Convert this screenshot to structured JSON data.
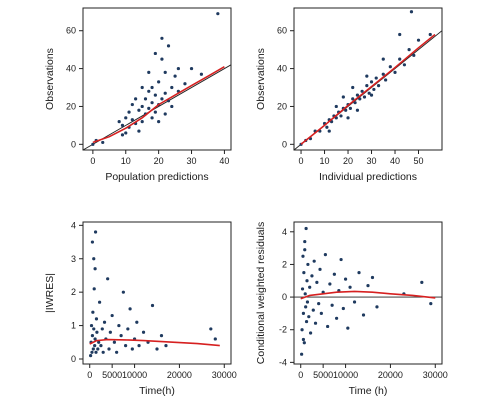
{
  "colors": {
    "points": "#1f3a5f",
    "smooth": "#d62020",
    "reference": "#222222",
    "frame": "#222222"
  },
  "chart_data": [
    {
      "id": "p1",
      "type": "scatter",
      "xlabel": "Population predictions",
      "ylabel": "Observations",
      "xlim": [
        -3,
        42
      ],
      "ylim": [
        -3,
        72
      ],
      "xticks": [
        0,
        10,
        20,
        30,
        40
      ],
      "yticks": [
        0,
        20,
        40,
        60
      ],
      "reference_line": {
        "kind": "identity"
      },
      "smooth": [
        [
          0,
          1
        ],
        [
          5,
          4
        ],
        [
          10,
          8.5
        ],
        [
          15,
          14
        ],
        [
          20,
          21
        ],
        [
          25,
          26
        ],
        [
          30,
          31
        ],
        [
          35,
          36
        ],
        [
          40,
          41
        ]
      ],
      "points": [
        [
          0,
          0
        ],
        [
          1,
          2
        ],
        [
          3,
          1
        ],
        [
          8,
          12
        ],
        [
          9,
          10
        ],
        [
          10,
          14
        ],
        [
          11,
          9
        ],
        [
          12,
          13
        ],
        [
          13,
          11
        ],
        [
          14,
          18
        ],
        [
          15,
          12
        ],
        [
          15,
          20
        ],
        [
          16,
          16
        ],
        [
          16,
          24
        ],
        [
          17,
          19
        ],
        [
          17,
          28
        ],
        [
          18,
          22
        ],
        [
          18,
          30
        ],
        [
          19,
          17
        ],
        [
          19,
          26
        ],
        [
          20,
          21
        ],
        [
          20,
          33
        ],
        [
          21,
          24
        ],
        [
          21,
          45
        ],
        [
          22,
          27
        ],
        [
          22,
          38
        ],
        [
          23,
          23
        ],
        [
          24,
          30
        ],
        [
          25,
          36
        ],
        [
          26,
          28
        ],
        [
          28,
          32
        ],
        [
          30,
          40
        ],
        [
          33,
          37
        ],
        [
          38,
          69
        ],
        [
          12,
          21
        ],
        [
          14,
          7
        ],
        [
          18,
          14
        ],
        [
          20,
          12
        ],
        [
          22,
          16
        ],
        [
          24,
          20
        ],
        [
          26,
          40
        ],
        [
          19,
          48
        ],
        [
          17,
          38
        ],
        [
          13,
          24
        ],
        [
          11,
          17
        ],
        [
          10,
          6
        ],
        [
          9,
          5
        ],
        [
          23,
          52
        ],
        [
          21,
          56
        ],
        [
          15,
          30
        ]
      ]
    },
    {
      "id": "p2",
      "type": "scatter",
      "xlabel": "Individual predictions",
      "ylabel": "Observations",
      "xlim": [
        -3,
        60
      ],
      "ylim": [
        -3,
        72
      ],
      "xticks": [
        0,
        10,
        20,
        30,
        40,
        50
      ],
      "yticks": [
        0,
        20,
        40,
        60
      ],
      "reference_line": {
        "kind": "identity"
      },
      "smooth": [
        [
          0,
          0
        ],
        [
          10,
          10
        ],
        [
          20,
          20.5
        ],
        [
          30,
          30.5
        ],
        [
          40,
          40.5
        ],
        [
          50,
          51
        ],
        [
          57,
          58
        ]
      ],
      "points": [
        [
          0,
          0
        ],
        [
          2,
          2
        ],
        [
          4,
          3
        ],
        [
          6,
          7
        ],
        [
          8,
          7
        ],
        [
          10,
          11
        ],
        [
          11,
          9
        ],
        [
          12,
          13
        ],
        [
          13,
          12
        ],
        [
          14,
          15
        ],
        [
          15,
          14
        ],
        [
          16,
          17
        ],
        [
          17,
          15
        ],
        [
          18,
          19
        ],
        [
          19,
          18
        ],
        [
          20,
          21
        ],
        [
          21,
          19
        ],
        [
          22,
          24
        ],
        [
          23,
          22
        ],
        [
          24,
          26
        ],
        [
          25,
          24
        ],
        [
          26,
          28
        ],
        [
          27,
          25
        ],
        [
          28,
          31
        ],
        [
          29,
          27
        ],
        [
          30,
          33
        ],
        [
          31,
          29
        ],
        [
          32,
          35
        ],
        [
          33,
          31
        ],
        [
          35,
          37
        ],
        [
          36,
          34
        ],
        [
          38,
          41
        ],
        [
          40,
          38
        ],
        [
          42,
          45
        ],
        [
          44,
          42
        ],
        [
          46,
          50
        ],
        [
          48,
          47
        ],
        [
          50,
          55
        ],
        [
          55,
          58
        ],
        [
          47,
          70
        ],
        [
          42,
          58
        ],
        [
          35,
          45
        ],
        [
          28,
          36
        ],
        [
          22,
          30
        ],
        [
          18,
          25
        ],
        [
          15,
          20
        ],
        [
          24,
          18
        ],
        [
          30,
          26
        ],
        [
          20,
          14
        ],
        [
          12,
          7
        ]
      ]
    },
    {
      "id": "p3",
      "type": "scatter",
      "xlabel": "Time(h)",
      "ylabel": "|IWRES|",
      "xlim": [
        -1500,
        31500
      ],
      "ylim": [
        -0.15,
        4.1
      ],
      "xticks": [
        0,
        5000,
        10000,
        20000,
        30000
      ],
      "yticks": [
        0,
        1,
        2,
        3,
        4
      ],
      "xtick_labels": [
        "0",
        "5000",
        "10000",
        "20000",
        "30000"
      ],
      "smooth": [
        [
          0,
          0.45
        ],
        [
          1500,
          0.55
        ],
        [
          4000,
          0.58
        ],
        [
          8000,
          0.57
        ],
        [
          12000,
          0.55
        ],
        [
          16000,
          0.52
        ],
        [
          20000,
          0.49
        ],
        [
          24000,
          0.46
        ],
        [
          29000,
          0.4
        ]
      ],
      "points": [
        [
          200,
          0.1
        ],
        [
          300,
          0.5
        ],
        [
          400,
          1.0
        ],
        [
          500,
          0.2
        ],
        [
          600,
          0.7
        ],
        [
          700,
          1.4
        ],
        [
          800,
          0.3
        ],
        [
          900,
          0.9
        ],
        [
          1000,
          2.1
        ],
        [
          1100,
          0.4
        ],
        [
          1200,
          0.6
        ],
        [
          1300,
          3.8
        ],
        [
          1400,
          0.2
        ],
        [
          1500,
          1.2
        ],
        [
          1600,
          0.8
        ],
        [
          1800,
          0.3
        ],
        [
          2000,
          0.5
        ],
        [
          2200,
          1.7
        ],
        [
          2500,
          0.4
        ],
        [
          2800,
          0.9
        ],
        [
          3000,
          0.2
        ],
        [
          3300,
          1.1
        ],
        [
          3600,
          0.6
        ],
        [
          4000,
          2.4
        ],
        [
          4300,
          0.3
        ],
        [
          4600,
          0.8
        ],
        [
          5000,
          1.3
        ],
        [
          5500,
          0.5
        ],
        [
          6000,
          0.2
        ],
        [
          6500,
          1.0
        ],
        [
          7000,
          0.7
        ],
        [
          7500,
          2.0
        ],
        [
          8000,
          0.4
        ],
        [
          8500,
          0.9
        ],
        [
          9000,
          1.5
        ],
        [
          9500,
          0.3
        ],
        [
          10000,
          0.6
        ],
        [
          10500,
          1.1
        ],
        [
          11000,
          0.4
        ],
        [
          12000,
          0.8
        ],
        [
          13000,
          0.5
        ],
        [
          14000,
          1.6
        ],
        [
          15000,
          0.3
        ],
        [
          16000,
          0.7
        ],
        [
          17000,
          0.4
        ],
        [
          27000,
          0.9
        ],
        [
          28000,
          0.6
        ],
        [
          600,
          3.5
        ],
        [
          900,
          3.0
        ],
        [
          1200,
          2.7
        ]
      ]
    },
    {
      "id": "p4",
      "type": "scatter",
      "xlabel": "Time (h)",
      "ylabel": "Conditional weighted residuals",
      "xlim": [
        -1500,
        31500
      ],
      "ylim": [
        -4.1,
        4.6
      ],
      "xticks": [
        0,
        5000,
        10000,
        20000,
        30000
      ],
      "yticks": [
        -4,
        -2,
        0,
        2,
        4
      ],
      "xtick_labels": [
        "0",
        "5000",
        "10000",
        "20000",
        "30000"
      ],
      "reference_line": {
        "kind": "horizontal",
        "y": 0
      },
      "smooth": [
        [
          0,
          -0.1
        ],
        [
          2000,
          0.1
        ],
        [
          5000,
          0.2
        ],
        [
          8000,
          0.3
        ],
        [
          12000,
          0.35
        ],
        [
          16000,
          0.3
        ],
        [
          20000,
          0.2
        ],
        [
          25000,
          0.1
        ],
        [
          30000,
          -0.05
        ]
      ],
      "points": [
        [
          200,
          -3.5
        ],
        [
          300,
          -2.0
        ],
        [
          400,
          0.5
        ],
        [
          500,
          2.5
        ],
        [
          600,
          -1.0
        ],
        [
          700,
          1.5
        ],
        [
          800,
          -2.8
        ],
        [
          900,
          3.4
        ],
        [
          1000,
          0.2
        ],
        [
          1100,
          -0.6
        ],
        [
          1200,
          4.2
        ],
        [
          1300,
          -1.5
        ],
        [
          1400,
          1.0
        ],
        [
          1500,
          -0.3
        ],
        [
          1600,
          2.0
        ],
        [
          1800,
          -1.2
        ],
        [
          2000,
          0.6
        ],
        [
          2200,
          -2.2
        ],
        [
          2500,
          1.3
        ],
        [
          2800,
          -0.8
        ],
        [
          3000,
          2.2
        ],
        [
          3300,
          -1.6
        ],
        [
          3600,
          0.9
        ],
        [
          4000,
          -0.4
        ],
        [
          4300,
          1.7
        ],
        [
          4600,
          -1.0
        ],
        [
          5000,
          0.3
        ],
        [
          5500,
          2.6
        ],
        [
          6000,
          -1.8
        ],
        [
          6500,
          0.8
        ],
        [
          7000,
          -0.5
        ],
        [
          7500,
          1.4
        ],
        [
          8000,
          -1.3
        ],
        [
          8500,
          0.4
        ],
        [
          9000,
          2.3
        ],
        [
          9500,
          -0.7
        ],
        [
          10000,
          1.1
        ],
        [
          10500,
          -1.9
        ],
        [
          11000,
          0.6
        ],
        [
          12000,
          -0.3
        ],
        [
          13000,
          1.5
        ],
        [
          14000,
          -1.1
        ],
        [
          15000,
          0.7
        ],
        [
          16000,
          1.2
        ],
        [
          17000,
          -0.6
        ],
        [
          23000,
          0.2
        ],
        [
          27000,
          0.9
        ],
        [
          29000,
          -0.4
        ],
        [
          600,
          -2.6
        ],
        [
          900,
          2.9
        ]
      ]
    }
  ]
}
